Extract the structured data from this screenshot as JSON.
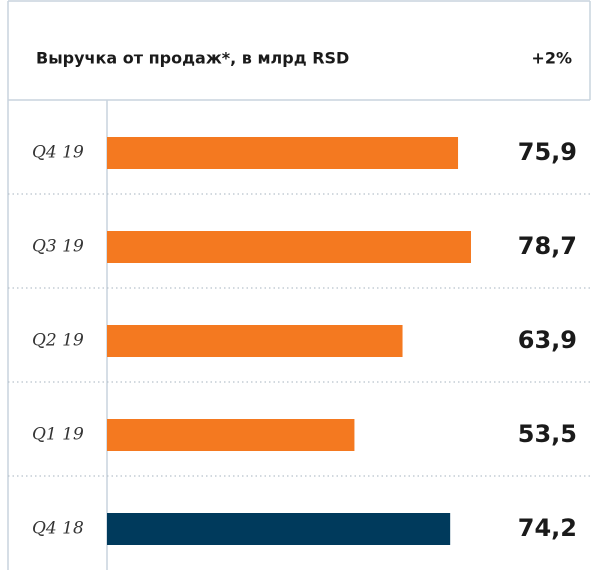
{
  "chart_data": {
    "type": "bar",
    "orientation": "horizontal",
    "title": "Выручка от продаж*, в млрд RSD",
    "annotation": "+2%",
    "categories": [
      "Q4 19",
      "Q3 19",
      "Q2 19",
      "Q1 19",
      "Q4 18"
    ],
    "values": [
      75.9,
      78.7,
      63.9,
      53.5,
      74.2
    ],
    "value_labels": [
      "75,9",
      "78,7",
      "63,9",
      "53,5",
      "74,2"
    ],
    "colors": [
      "#f47920",
      "#f47920",
      "#f47920",
      "#f47920",
      "#003a5c"
    ],
    "xlim": [
      0,
      100
    ]
  }
}
